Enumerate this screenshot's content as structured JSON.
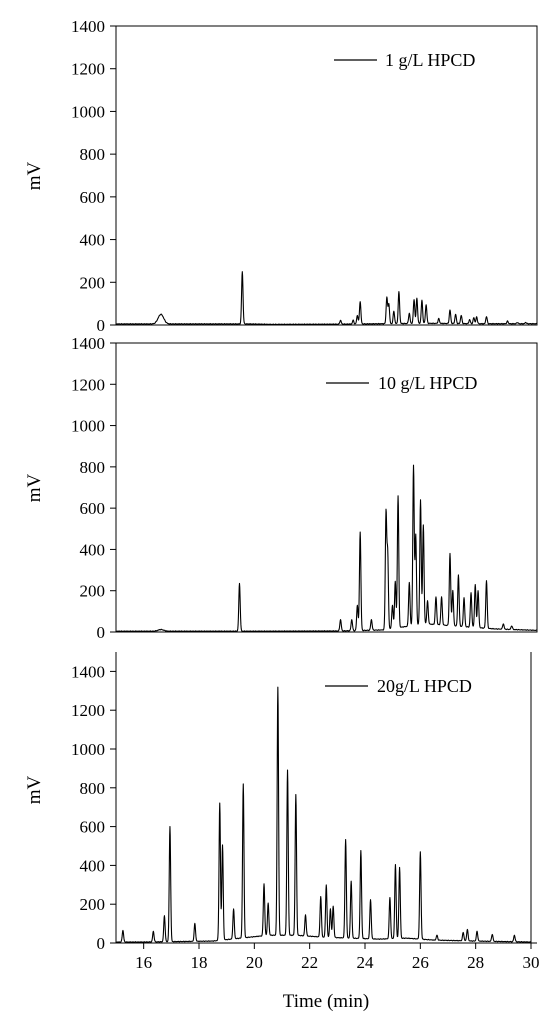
{
  "chart_data": [
    {
      "type": "line",
      "legend": "1 g/L HPCD",
      "legend_position": "top-right",
      "ylabel": "mV",
      "xlabel": "",
      "xlim": [
        15,
        30
      ],
      "ylim": [
        0,
        1400
      ],
      "yticks": [
        "0",
        "200",
        "400",
        "600",
        "800",
        "1000",
        "1200",
        "1400"
      ],
      "baseline": [
        [
          15.0,
          5
        ],
        [
          15.5,
          5
        ],
        [
          16.0,
          5
        ],
        [
          16.3,
          5
        ],
        [
          17.2,
          5
        ],
        [
          19.0,
          5
        ],
        [
          19.75,
          5
        ],
        [
          20.5,
          3
        ],
        [
          23.0,
          4
        ],
        [
          26.0,
          8
        ],
        [
          28.0,
          6
        ],
        [
          30.0,
          6
        ]
      ],
      "peaks": [
        {
          "x": 16.6,
          "y": 50,
          "w": 0.1
        },
        {
          "x": 19.5,
          "y": 250
        },
        {
          "x": 23.0,
          "y": 22
        },
        {
          "x": 23.45,
          "y": 22
        },
        {
          "x": 23.6,
          "y": 45
        },
        {
          "x": 23.7,
          "y": 110
        },
        {
          "x": 24.65,
          "y": 130
        },
        {
          "x": 24.72,
          "y": 100
        },
        {
          "x": 24.9,
          "y": 65
        },
        {
          "x": 25.08,
          "y": 155
        },
        {
          "x": 25.45,
          "y": 55
        },
        {
          "x": 25.62,
          "y": 120
        },
        {
          "x": 25.72,
          "y": 125
        },
        {
          "x": 25.9,
          "y": 115
        },
        {
          "x": 26.05,
          "y": 95
        },
        {
          "x": 26.5,
          "y": 30
        },
        {
          "x": 26.9,
          "y": 70
        },
        {
          "x": 27.1,
          "y": 50
        },
        {
          "x": 27.3,
          "y": 45
        },
        {
          "x": 27.6,
          "y": 25
        },
        {
          "x": 27.75,
          "y": 35
        },
        {
          "x": 27.85,
          "y": 38
        },
        {
          "x": 28.2,
          "y": 40
        },
        {
          "x": 28.95,
          "y": 18
        },
        {
          "x": 29.3,
          "y": 12
        },
        {
          "x": 29.6,
          "y": 12
        }
      ]
    },
    {
      "type": "line",
      "legend": "10 g/L HPCD",
      "legend_position": "top-right",
      "ylabel": "mV",
      "xlabel": "",
      "xlim": [
        15,
        30
      ],
      "ylim": [
        0,
        1400
      ],
      "yticks": [
        "0",
        "200",
        "400",
        "600",
        "800",
        "1000",
        "1200",
        "1400"
      ],
      "baseline": [
        [
          15.0,
          4
        ],
        [
          16.0,
          4
        ],
        [
          16.6,
          4
        ],
        [
          19.3,
          4
        ],
        [
          19.6,
          4
        ],
        [
          20.5,
          4
        ],
        [
          23.0,
          5
        ],
        [
          24.5,
          10
        ],
        [
          26.0,
          40
        ],
        [
          27.5,
          25
        ],
        [
          28.5,
          15
        ],
        [
          30.0,
          8
        ]
      ],
      "peaks": [
        {
          "x": 16.6,
          "y": 12,
          "w": 0.1
        },
        {
          "x": 19.4,
          "y": 235
        },
        {
          "x": 23.0,
          "y": 60
        },
        {
          "x": 23.4,
          "y": 60
        },
        {
          "x": 23.6,
          "y": 130
        },
        {
          "x": 23.7,
          "y": 485
        },
        {
          "x": 24.1,
          "y": 60
        },
        {
          "x": 24.62,
          "y": 575
        },
        {
          "x": 24.68,
          "y": 375
        },
        {
          "x": 24.85,
          "y": 130
        },
        {
          "x": 24.95,
          "y": 245
        },
        {
          "x": 25.05,
          "y": 660
        },
        {
          "x": 25.45,
          "y": 240
        },
        {
          "x": 25.6,
          "y": 805
        },
        {
          "x": 25.68,
          "y": 470
        },
        {
          "x": 25.85,
          "y": 640
        },
        {
          "x": 25.95,
          "y": 520
        },
        {
          "x": 26.1,
          "y": 150
        },
        {
          "x": 26.4,
          "y": 170
        },
        {
          "x": 26.6,
          "y": 170
        },
        {
          "x": 26.9,
          "y": 380
        },
        {
          "x": 27.0,
          "y": 200
        },
        {
          "x": 27.2,
          "y": 275
        },
        {
          "x": 27.4,
          "y": 165
        },
        {
          "x": 27.65,
          "y": 190
        },
        {
          "x": 27.8,
          "y": 230
        },
        {
          "x": 27.9,
          "y": 200
        },
        {
          "x": 28.2,
          "y": 250
        },
        {
          "x": 28.8,
          "y": 40
        },
        {
          "x": 29.1,
          "y": 30
        }
      ]
    },
    {
      "type": "line",
      "legend": "20g/L HPCD",
      "legend_position": "top-right",
      "ylabel": "mV",
      "xlabel": "Time (min)",
      "xlim": [
        15,
        30
      ],
      "ylim": [
        0,
        1500
      ],
      "xticks": [
        "16",
        "18",
        "20",
        "22",
        "24",
        "26",
        "28",
        "30"
      ],
      "yticks": [
        "0",
        "200",
        "400",
        "600",
        "800",
        "1000",
        "1200",
        "1400"
      ],
      "baseline": [
        [
          15.0,
          5
        ],
        [
          16.0,
          5
        ],
        [
          17.5,
          8
        ],
        [
          18.5,
          10
        ],
        [
          19.5,
          25
        ],
        [
          20.5,
          40
        ],
        [
          21.5,
          40
        ],
        [
          22.5,
          30
        ],
        [
          23.5,
          25
        ],
        [
          24.5,
          20
        ],
        [
          25.5,
          25
        ],
        [
          26.5,
          15
        ],
        [
          28.0,
          10
        ],
        [
          30.0,
          5
        ]
      ],
      "peaks": [
        {
          "x": 15.25,
          "y": 65
        },
        {
          "x": 16.35,
          "y": 60
        },
        {
          "x": 16.75,
          "y": 140
        },
        {
          "x": 16.95,
          "y": 600
        },
        {
          "x": 17.85,
          "y": 100
        },
        {
          "x": 18.75,
          "y": 720
        },
        {
          "x": 18.85,
          "y": 505
        },
        {
          "x": 19.25,
          "y": 175
        },
        {
          "x": 19.6,
          "y": 820
        },
        {
          "x": 20.35,
          "y": 305
        },
        {
          "x": 20.5,
          "y": 205
        },
        {
          "x": 20.85,
          "y": 1320
        },
        {
          "x": 21.2,
          "y": 890
        },
        {
          "x": 21.5,
          "y": 765
        },
        {
          "x": 21.85,
          "y": 145
        },
        {
          "x": 22.4,
          "y": 240
        },
        {
          "x": 22.6,
          "y": 300
        },
        {
          "x": 22.75,
          "y": 175
        },
        {
          "x": 22.85,
          "y": 190
        },
        {
          "x": 23.3,
          "y": 535
        },
        {
          "x": 23.5,
          "y": 320
        },
        {
          "x": 23.85,
          "y": 475
        },
        {
          "x": 24.2,
          "y": 225
        },
        {
          "x": 24.9,
          "y": 235
        },
        {
          "x": 25.1,
          "y": 405
        },
        {
          "x": 25.25,
          "y": 390
        },
        {
          "x": 26.0,
          "y": 470
        },
        {
          "x": 26.6,
          "y": 40
        },
        {
          "x": 27.55,
          "y": 55
        },
        {
          "x": 27.7,
          "y": 70
        },
        {
          "x": 28.05,
          "y": 60
        },
        {
          "x": 28.6,
          "y": 45
        },
        {
          "x": 29.4,
          "y": 40
        }
      ]
    }
  ]
}
